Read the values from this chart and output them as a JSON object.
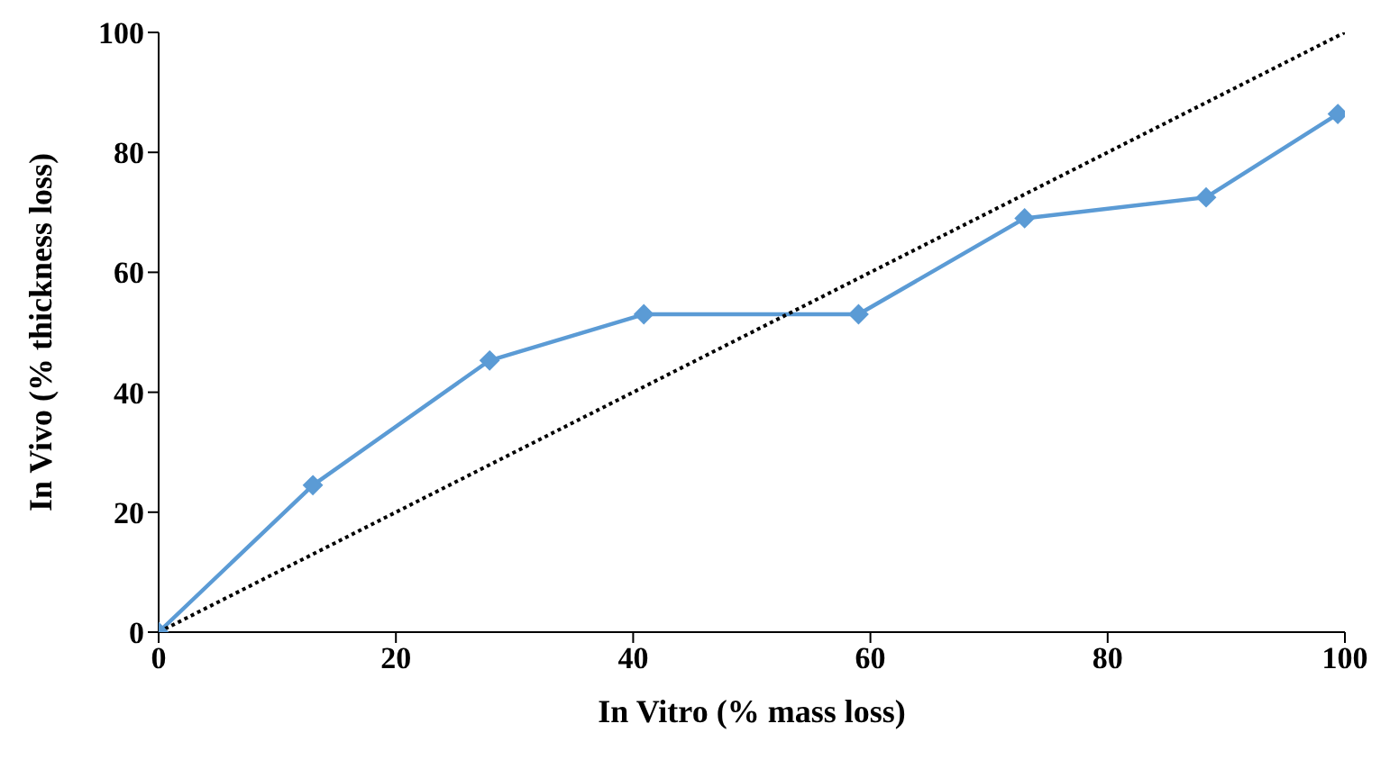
{
  "chart_data": {
    "type": "line",
    "xlabel": "In Vitro (% mass loss)",
    "ylabel": "In Vivo (% thickness loss)",
    "xlim": [
      0,
      100
    ],
    "xticks": [
      0,
      20,
      40,
      60,
      80,
      100
    ],
    "ylim": [
      0,
      100
    ],
    "yticks": [
      0,
      20,
      40,
      60,
      80,
      100
    ],
    "series": [
      {
        "color": "#5b9bd5",
        "marker": "diamond",
        "line_style": "solid",
        "x": [
          0,
          13,
          27.9,
          40.9,
          59,
          73,
          88.3,
          99.4
        ],
        "values": [
          0,
          24.5,
          45.3,
          53,
          53,
          69,
          72.5,
          86.4
        ]
      },
      {
        "color": "#000000",
        "marker": "none",
        "line_style": "dotted",
        "x": [
          0,
          100
        ],
        "values": [
          0,
          100
        ]
      }
    ]
  }
}
